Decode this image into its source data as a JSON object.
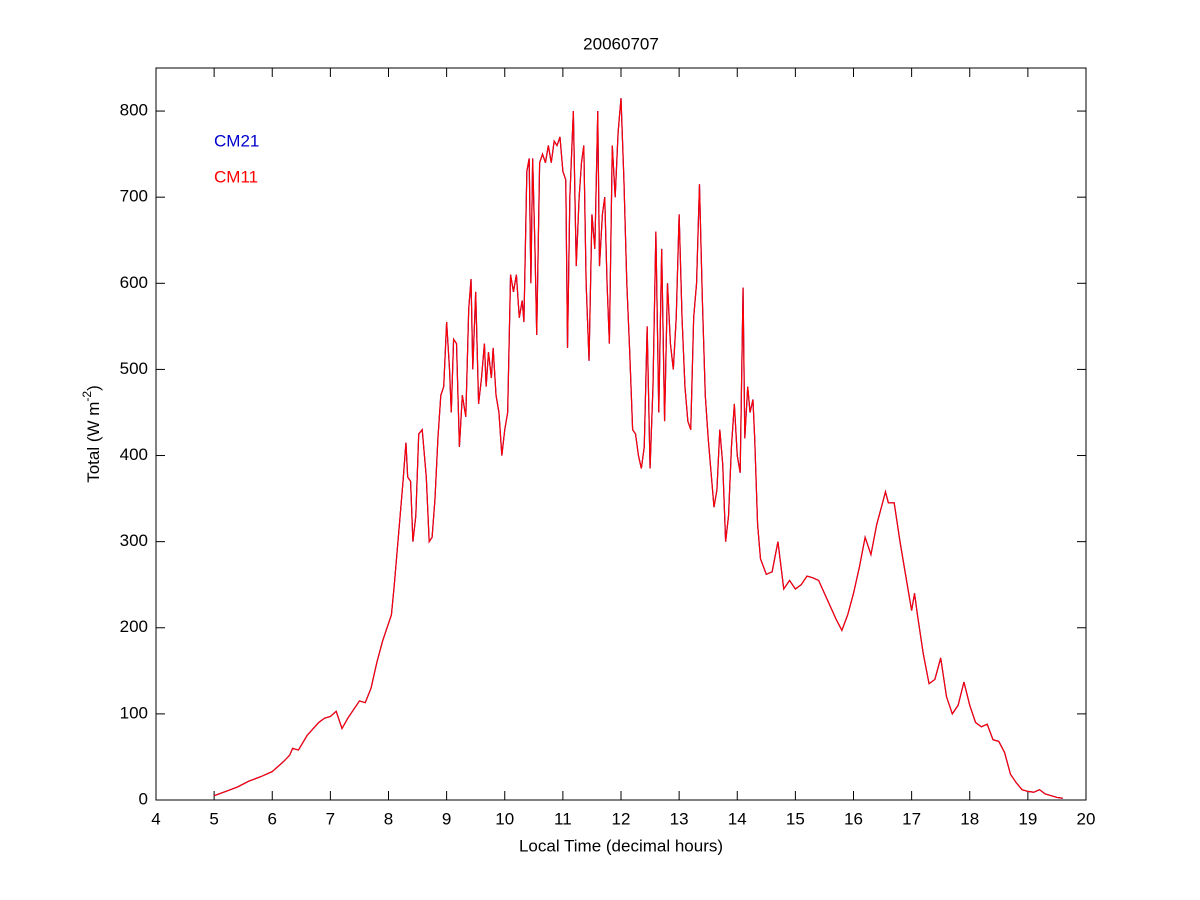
{
  "chart_data": {
    "type": "line",
    "title": "20060707",
    "xlabel": "Local Time (decimal hours)",
    "ylabel": [
      "Total (W m",
      "-2",
      ")"
    ],
    "xlim": [
      4,
      20
    ],
    "ylim": [
      0,
      850
    ],
    "xticks": [
      4,
      5,
      6,
      7,
      8,
      9,
      10,
      11,
      12,
      13,
      14,
      15,
      16,
      17,
      18,
      19,
      20
    ],
    "yticks": [
      0,
      100,
      200,
      300,
      400,
      500,
      600,
      700,
      800
    ],
    "legend": "upper left",
    "x": [
      5.0,
      5.2,
      5.4,
      5.6,
      5.8,
      6.0,
      6.2,
      6.3,
      6.35,
      6.45,
      6.6,
      6.8,
      6.9,
      7.0,
      7.1,
      7.2,
      7.3,
      7.5,
      7.6,
      7.7,
      7.8,
      7.9,
      8.0,
      8.05,
      8.1,
      8.15,
      8.2,
      8.25,
      8.3,
      8.33,
      8.38,
      8.42,
      8.47,
      8.52,
      8.58,
      8.65,
      8.7,
      8.75,
      8.8,
      8.85,
      8.9,
      8.95,
      9.0,
      9.05,
      9.08,
      9.12,
      9.17,
      9.22,
      9.27,
      9.33,
      9.38,
      9.42,
      9.45,
      9.5,
      9.55,
      9.6,
      9.65,
      9.68,
      9.72,
      9.77,
      9.8,
      9.85,
      9.9,
      9.95,
      10.0,
      10.05,
      10.1,
      10.15,
      10.2,
      10.25,
      10.3,
      10.33,
      10.38,
      10.42,
      10.45,
      10.48,
      10.52,
      10.55,
      10.6,
      10.65,
      10.7,
      10.75,
      10.8,
      10.85,
      10.9,
      10.95,
      11.0,
      11.05,
      11.08,
      11.12,
      11.18,
      11.23,
      11.28,
      11.32,
      11.36,
      11.4,
      11.45,
      11.5,
      11.55,
      11.6,
      11.63,
      11.68,
      11.72,
      11.76,
      11.8,
      11.85,
      11.9,
      11.95,
      12.0,
      12.05,
      12.1,
      12.15,
      12.2,
      12.25,
      12.3,
      12.35,
      12.4,
      12.45,
      12.5,
      12.55,
      12.6,
      12.65,
      12.7,
      12.75,
      12.8,
      12.85,
      12.9,
      12.95,
      13.0,
      13.05,
      13.1,
      13.15,
      13.2,
      13.25,
      13.3,
      13.35,
      13.4,
      13.45,
      13.5,
      13.55,
      13.6,
      13.65,
      13.7,
      13.75,
      13.8,
      13.85,
      13.9,
      13.95,
      14.0,
      14.05,
      14.1,
      14.13,
      14.18,
      14.22,
      14.27,
      14.3,
      14.35,
      14.4,
      14.5,
      14.6,
      14.7,
      14.8,
      14.9,
      15.0,
      15.1,
      15.2,
      15.3,
      15.4,
      15.5,
      15.6,
      15.7,
      15.8,
      15.9,
      16.0,
      16.1,
      16.2,
      16.3,
      16.4,
      16.5,
      16.55,
      16.6,
      16.7,
      16.8,
      16.9,
      17.0,
      17.05,
      17.1,
      17.2,
      17.3,
      17.4,
      17.5,
      17.6,
      17.7,
      17.8,
      17.9,
      18.0,
      18.1,
      18.2,
      18.3,
      18.4,
      18.5,
      18.6,
      18.7,
      18.8,
      18.9,
      19.0,
      19.1,
      19.2,
      19.3,
      19.4,
      19.5,
      19.6
    ],
    "series": [
      {
        "name": "CM21",
        "color": "#0000cc",
        "values": [
          5,
          10,
          15,
          22,
          27,
          33,
          45,
          52,
          60,
          58,
          75,
          90,
          95,
          97,
          103,
          83,
          95,
          115,
          113,
          130,
          160,
          185,
          205,
          215,
          250,
          290,
          330,
          370,
          415,
          375,
          370,
          300,
          330,
          425,
          430,
          375,
          300,
          305,
          350,
          420,
          470,
          480,
          555,
          500,
          450,
          535,
          530,
          410,
          470,
          445,
          570,
          605,
          500,
          590,
          460,
          490,
          530,
          480,
          520,
          490,
          525,
          470,
          450,
          400,
          430,
          450,
          610,
          590,
          610,
          560,
          580,
          555,
          730,
          745,
          600,
          745,
          640,
          540,
          740,
          750,
          740,
          760,
          740,
          765,
          760,
          770,
          730,
          720,
          525,
          700,
          800,
          620,
          700,
          740,
          760,
          600,
          510,
          680,
          640,
          800,
          620,
          680,
          700,
          600,
          530,
          760,
          700,
          775,
          815,
          720,
          600,
          520,
          430,
          425,
          400,
          385,
          410,
          550,
          385,
          480,
          660,
          450,
          640,
          440,
          600,
          530,
          500,
          560,
          680,
          560,
          480,
          440,
          430,
          560,
          600,
          715,
          580,
          470,
          420,
          380,
          340,
          360,
          430,
          390,
          300,
          330,
          410,
          460,
          400,
          380,
          595,
          420,
          480,
          450,
          465,
          420,
          320,
          280,
          262,
          265,
          300,
          245,
          255,
          245,
          250,
          260,
          258,
          255,
          240,
          225,
          210,
          197,
          215,
          240,
          270,
          305,
          285,
          320,
          345,
          358,
          345,
          345,
          300,
          260,
          220,
          240,
          215,
          170,
          135,
          140,
          165,
          120,
          100,
          110,
          137,
          110,
          90,
          85,
          88,
          70,
          68,
          55,
          30,
          20,
          12,
          10,
          9,
          12,
          7,
          5,
          3,
          2
        ]
      },
      {
        "name": "CM11",
        "color": "#ff0000",
        "values": [
          5,
          10,
          15,
          22,
          27,
          33,
          45,
          52,
          60,
          58,
          75,
          90,
          95,
          97,
          103,
          83,
          95,
          115,
          113,
          130,
          160,
          185,
          205,
          215,
          250,
          290,
          330,
          370,
          415,
          375,
          370,
          300,
          330,
          425,
          430,
          375,
          300,
          305,
          350,
          420,
          470,
          480,
          555,
          500,
          450,
          535,
          530,
          410,
          470,
          445,
          570,
          605,
          500,
          590,
          460,
          490,
          530,
          480,
          520,
          490,
          525,
          470,
          450,
          400,
          430,
          450,
          610,
          590,
          610,
          560,
          580,
          555,
          730,
          745,
          600,
          745,
          640,
          540,
          740,
          750,
          740,
          760,
          740,
          765,
          760,
          770,
          730,
          720,
          525,
          700,
          800,
          620,
          700,
          740,
          760,
          600,
          510,
          680,
          640,
          800,
          620,
          680,
          700,
          600,
          530,
          760,
          700,
          775,
          815,
          720,
          600,
          520,
          430,
          425,
          400,
          385,
          410,
          550,
          385,
          480,
          660,
          450,
          640,
          440,
          600,
          530,
          500,
          560,
          680,
          560,
          480,
          440,
          430,
          560,
          600,
          715,
          580,
          470,
          420,
          380,
          340,
          360,
          430,
          390,
          300,
          330,
          410,
          460,
          400,
          380,
          595,
          420,
          480,
          450,
          465,
          420,
          320,
          280,
          262,
          265,
          300,
          245,
          255,
          245,
          250,
          260,
          258,
          255,
          240,
          225,
          210,
          197,
          215,
          240,
          270,
          305,
          285,
          320,
          345,
          358,
          345,
          345,
          300,
          260,
          220,
          240,
          215,
          170,
          135,
          140,
          165,
          120,
          100,
          110,
          137,
          110,
          90,
          85,
          88,
          70,
          68,
          55,
          30,
          20,
          12,
          10,
          9,
          12,
          7,
          5,
          3,
          2
        ]
      }
    ]
  }
}
